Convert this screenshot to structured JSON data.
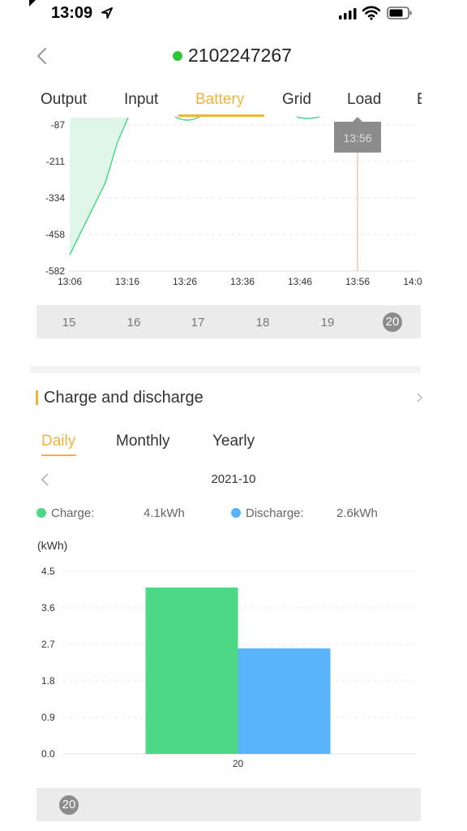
{
  "status_bar": {
    "time": "13:09"
  },
  "header": {
    "device_id": "2102247267"
  },
  "tabs": [
    {
      "label": "Output",
      "active": false
    },
    {
      "label": "Input",
      "active": false
    },
    {
      "label": "Battery",
      "active": true
    },
    {
      "label": "Grid",
      "active": false
    },
    {
      "label": "Load",
      "active": false
    },
    {
      "label": "B",
      "active": false
    }
  ],
  "power_chart": {
    "type": "line",
    "y_ticks": [
      "-87",
      "-211",
      "-334",
      "-458",
      "-582"
    ],
    "x_ticks": [
      "13:06",
      "13:16",
      "13:26",
      "13:36",
      "13:46",
      "13:56",
      "14:0"
    ],
    "tooltip_time": "13:56"
  },
  "day_selector": {
    "days": [
      "15",
      "16",
      "17",
      "18",
      "19",
      "20"
    ],
    "selected": "20"
  },
  "charge_section": {
    "title": "Charge and discharge",
    "period_tabs": [
      {
        "label": "Daily",
        "active": true
      },
      {
        "label": "Monthly",
        "active": false
      },
      {
        "label": "Yearly",
        "active": false
      }
    ],
    "month": "2021-10",
    "legend": {
      "charge_label": "Charge:",
      "charge_value": "4.1kWh",
      "discharge_label": "Discharge:",
      "discharge_value": "2.6kWh"
    }
  },
  "chart_data": {
    "type": "bar",
    "ylabel": "(kWh)",
    "ylim": [
      0,
      4.5
    ],
    "y_ticks": [
      "4.5",
      "3.6",
      "2.7",
      "1.8",
      "0.9",
      "0.0"
    ],
    "categories": [
      "20"
    ],
    "series": [
      {
        "name": "Charge",
        "values": [
          4.1
        ]
      },
      {
        "name": "Discharge",
        "values": [
          2.6
        ]
      }
    ]
  },
  "bottom_day_selector": {
    "selected": "20"
  },
  "colors": {
    "accent": "#f0b43c",
    "online": "#2ec737",
    "charge": "#4cd884",
    "discharge": "#5ab4fc"
  }
}
